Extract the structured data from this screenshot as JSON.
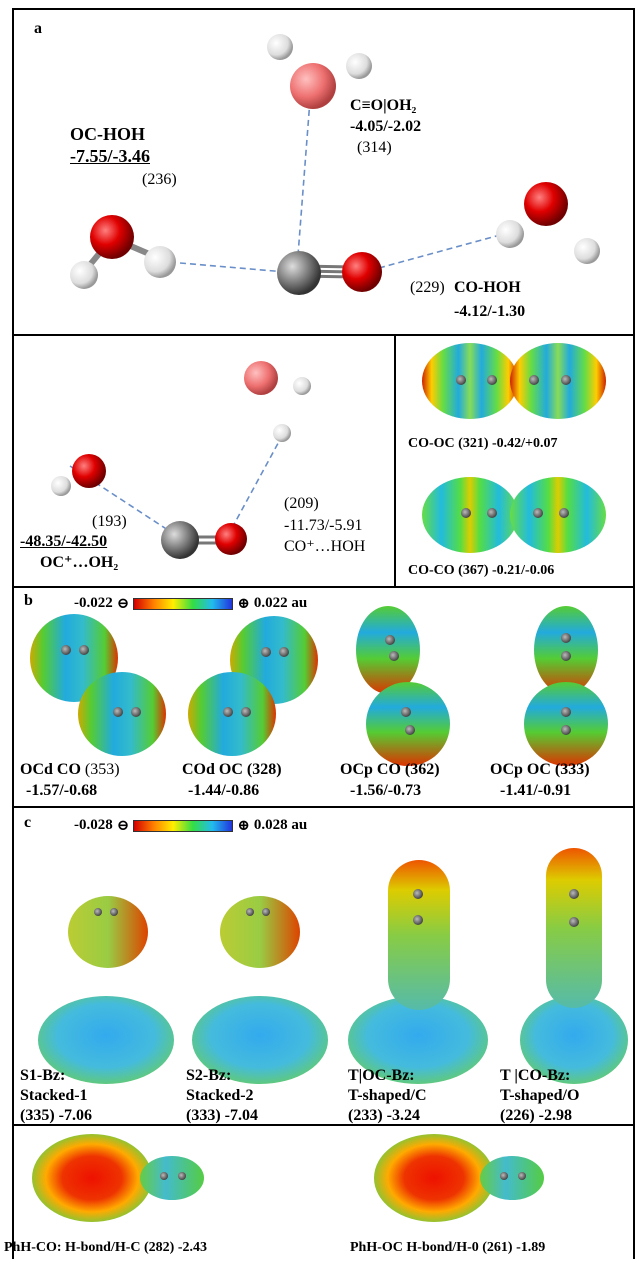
{
  "panel_a": {
    "label": "a",
    "oc_hoh": {
      "name": "OC-HOH",
      "energy": "-7.55/-3.46",
      "dist": "(236)"
    },
    "co_oh2": {
      "name": "C≡O|OH₂",
      "energy": "-4.05/-2.02",
      "dist": "(314)"
    },
    "co_hoh": {
      "dist": "(229)",
      "name": "CO-HOH",
      "energy": "-4.12/-1.30"
    }
  },
  "panel_a2": {
    "left_dist": "(193)",
    "left_energy": "-48.35/-42.50",
    "left_name": "OC⁺…OH₂",
    "right_dist": "(209)",
    "right_energy": "-11.73/-5.91",
    "right_name": "CO⁺…HOH"
  },
  "panel_a3": {
    "co_oc": "CO-OC (321) -0.42/+0.07",
    "co_co": "CO-CO (367) -0.21/-0.06"
  },
  "panel_b": {
    "label": "b",
    "scale_min": "-0.022",
    "scale_max": "0.022 au",
    "items": [
      {
        "name": "OCd CO",
        "dist": "(353)",
        "energy": "-1.57/-0.68"
      },
      {
        "name": "COd OC",
        "dist": "(328)",
        "energy": "-1.44/-0.86"
      },
      {
        "name": "OCp CO",
        "dist": "(362)",
        "energy": "-1.56/-0.73"
      },
      {
        "name": "OCp OC",
        "dist": "(333)",
        "energy": "-1.41/-0.91"
      }
    ]
  },
  "panel_c": {
    "label": "c",
    "scale_min": "-0.028",
    "scale_max": "0.028 au",
    "items": [
      {
        "l1": "S1-Bz:",
        "l2": "Stacked-1",
        "l3": "(335) -7.06"
      },
      {
        "l1": "S2-Bz:",
        "l2": "Stacked-2",
        "l3": "(333) -7.04"
      },
      {
        "l1": "T|OC-Bz:",
        "l2": "T-shaped/C",
        "l3": "(233) -3.24"
      },
      {
        "l1": "T |CO-Bz:",
        "l2": "T-shaped/O",
        "l3": "(226) -2.98"
      }
    ]
  },
  "panel_d": {
    "left": "PhH-CO: H-bond/H-C (282) -2.43",
    "right": "PhH-OC H-bond/H-0 (261) -1.89"
  }
}
